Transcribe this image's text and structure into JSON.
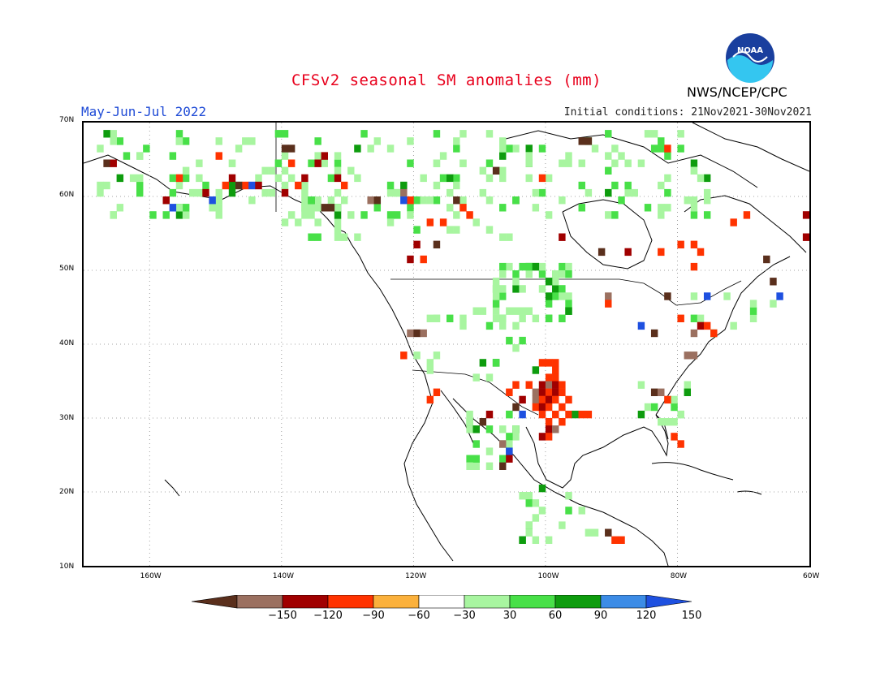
{
  "title": "CFSv2 seasonal SM anomalies (mm)",
  "period": "May-Jun-Jul 2022",
  "initial_conditions": "Initial conditions: 21Nov2021-30Nov2021",
  "agency": "NWS/NCEP/CPC",
  "logo_text": "NOAA",
  "map": {
    "lon_range": [
      -170,
      -60
    ],
    "lat_range": [
      10,
      70
    ],
    "lat_labels": [
      {
        "value": 70,
        "text": "70N"
      },
      {
        "value": 60,
        "text": "60N"
      },
      {
        "value": 50,
        "text": "50N"
      },
      {
        "value": 40,
        "text": "40N"
      },
      {
        "value": 30,
        "text": "30N"
      },
      {
        "value": 20,
        "text": "20N"
      },
      {
        "value": 10,
        "text": "10N"
      }
    ],
    "lon_labels": [
      {
        "value": -160,
        "text": "160W"
      },
      {
        "value": -140,
        "text": "140W"
      },
      {
        "value": -120,
        "text": "120W"
      },
      {
        "value": -100,
        "text": "100W"
      },
      {
        "value": -80,
        "text": "80W"
      },
      {
        "value": -60,
        "text": "60W"
      }
    ],
    "grid_lines": "dotted",
    "anomaly_cells": [
      {
        "lon": -100,
        "lat": 36,
        "v": -60
      },
      {
        "lon": -99,
        "lat": 36,
        "v": -60
      },
      {
        "lon": -101,
        "lat": 35,
        "v": -90
      },
      {
        "lon": -100,
        "lat": 35,
        "v": -120
      },
      {
        "lon": -99,
        "lat": 35,
        "v": -90
      },
      {
        "lon": -98,
        "lat": 35,
        "v": -60
      },
      {
        "lon": -102,
        "lat": 34,
        "v": -120
      },
      {
        "lon": -101,
        "lat": 34,
        "v": -90
      },
      {
        "lon": -100,
        "lat": 34,
        "v": -60
      },
      {
        "lon": -99,
        "lat": 34,
        "v": -90
      },
      {
        "lon": -98,
        "lat": 34,
        "v": -60
      },
      {
        "lon": -102,
        "lat": 33,
        "v": -120
      },
      {
        "lon": -101,
        "lat": 33,
        "v": -60
      },
      {
        "lon": -100,
        "lat": 33,
        "v": -90
      },
      {
        "lon": -99,
        "lat": 33,
        "v": -60
      },
      {
        "lon": -102,
        "lat": 32,
        "v": -60
      },
      {
        "lon": -101,
        "lat": 32,
        "v": -90
      },
      {
        "lon": -100,
        "lat": 32,
        "v": -60
      },
      {
        "lon": -98,
        "lat": 32,
        "v": -60
      },
      {
        "lon": -101,
        "lat": 31,
        "v": -60
      },
      {
        "lon": -99,
        "lat": 31,
        "v": -60
      },
      {
        "lon": -100,
        "lat": 30,
        "v": -60
      },
      {
        "lon": -98,
        "lat": 30,
        "v": -60
      },
      {
        "lon": -100,
        "lat": 29,
        "v": -90
      },
      {
        "lon": -99,
        "lat": 29,
        "v": -120
      },
      {
        "lon": -101,
        "lat": 28,
        "v": -90
      },
      {
        "lon": -100,
        "lat": 28,
        "v": -60
      },
      {
        "lon": -100,
        "lat": 38,
        "v": -60
      },
      {
        "lon": -99,
        "lat": 38,
        "v": -60
      },
      {
        "lon": -101,
        "lat": 38,
        "v": -60
      },
      {
        "lon": -99,
        "lat": 37,
        "v": -60
      },
      {
        "lon": -103,
        "lat": 35,
        "v": -60
      },
      {
        "lon": -104,
        "lat": 33,
        "v": -90
      },
      {
        "lon": -105,
        "lat": 32,
        "v": -150
      },
      {
        "lon": -104,
        "lat": 31,
        "v": 150
      },
      {
        "lon": -106,
        "lat": 34,
        "v": -60
      },
      {
        "lon": -105,
        "lat": 35,
        "v": -60
      },
      {
        "lon": -97,
        "lat": 33,
        "v": -60
      },
      {
        "lon": -97,
        "lat": 31,
        "v": -60
      },
      {
        "lon": -96,
        "lat": 31,
        "v": 90
      },
      {
        "lon": -95,
        "lat": 31,
        "v": -60
      },
      {
        "lon": -94,
        "lat": 31,
        "v": -60
      },
      {
        "lon": -84,
        "lat": 34,
        "v": -150
      },
      {
        "lon": -83,
        "lat": 34,
        "v": -120
      },
      {
        "lon": -82,
        "lat": 33,
        "v": -60
      },
      {
        "lon": -84,
        "lat": 32,
        "v": 60
      },
      {
        "lon": -81,
        "lat": 28,
        "v": -60
      },
      {
        "lon": -80,
        "lat": 27,
        "v": -60
      },
      {
        "lon": -79,
        "lat": 39,
        "v": -120
      },
      {
        "lon": -78,
        "lat": 39,
        "v": -120
      },
      {
        "lon": -77,
        "lat": 43,
        "v": -90
      },
      {
        "lon": -76,
        "lat": 43,
        "v": -60
      },
      {
        "lon": -78,
        "lat": 42,
        "v": -120
      },
      {
        "lon": -75,
        "lat": 42,
        "v": -60
      },
      {
        "lon": -80,
        "lat": 44,
        "v": -60
      },
      {
        "lon": -86,
        "lat": 43,
        "v": 150
      },
      {
        "lon": -84,
        "lat": 42,
        "v": -150
      },
      {
        "lon": -82,
        "lat": 47,
        "v": -150
      },
      {
        "lon": -91,
        "lat": 47,
        "v": -120
      },
      {
        "lon": -91,
        "lat": 46,
        "v": -60
      },
      {
        "lon": -121,
        "lat": 42,
        "v": -120
      },
      {
        "lon": -120,
        "lat": 42,
        "v": -150
      },
      {
        "lon": -119,
        "lat": 42,
        "v": -120
      },
      {
        "lon": -122,
        "lat": 39,
        "v": -60
      },
      {
        "lon": -118,
        "lat": 33,
        "v": -60
      },
      {
        "lon": -117,
        "lat": 34,
        "v": -60
      },
      {
        "lon": -110,
        "lat": 30,
        "v": -150
      },
      {
        "lon": -109,
        "lat": 31,
        "v": -90
      },
      {
        "lon": -107,
        "lat": 27,
        "v": -120
      },
      {
        "lon": -106,
        "lat": 26,
        "v": 150
      },
      {
        "lon": -106,
        "lat": 25,
        "v": -90
      },
      {
        "lon": -107,
        "lat": 24,
        "v": -150
      },
      {
        "lon": -91,
        "lat": 15,
        "v": -150
      },
      {
        "lon": -90,
        "lat": 14,
        "v": -60
      },
      {
        "lon": -89,
        "lat": 14,
        "v": -60
      },
      {
        "lon": -98,
        "lat": 55,
        "v": -90
      },
      {
        "lon": -92,
        "lat": 53,
        "v": -150
      },
      {
        "lon": -88,
        "lat": 53,
        "v": -90
      },
      {
        "lon": -83,
        "lat": 53,
        "v": -60
      },
      {
        "lon": -80,
        "lat": 54,
        "v": -60
      },
      {
        "lon": -78,
        "lat": 54,
        "v": -60
      },
      {
        "lon": -77,
        "lat": 53,
        "v": -60
      },
      {
        "lon": -78,
        "lat": 51,
        "v": -60
      },
      {
        "lon": -70,
        "lat": 58,
        "v": -60
      },
      {
        "lon": -61,
        "lat": 58,
        "v": -90
      },
      {
        "lon": -61,
        "lat": 55,
        "v": -90
      },
      {
        "lon": -120,
        "lat": 54,
        "v": -90
      },
      {
        "lon": -121,
        "lat": 52,
        "v": -90
      },
      {
        "lon": -119,
        "lat": 52,
        "v": -60
      },
      {
        "lon": -117,
        "lat": 54,
        "v": -150
      },
      {
        "lon": -114,
        "lat": 60,
        "v": -150
      },
      {
        "lon": -113,
        "lat": 59,
        "v": -60
      },
      {
        "lon": -112,
        "lat": 58,
        "v": -60
      },
      {
        "lon": -116,
        "lat": 57,
        "v": -60
      },
      {
        "lon": -118,
        "lat": 57,
        "v": -60
      },
      {
        "lon": -134,
        "lat": 59,
        "v": -150
      },
      {
        "lon": -133,
        "lat": 59,
        "v": -150
      },
      {
        "lon": -127,
        "lat": 60,
        "v": -120
      },
      {
        "lon": -126,
        "lat": 60,
        "v": -150
      },
      {
        "lon": -122,
        "lat": 61,
        "v": -120
      },
      {
        "lon": -121,
        "lat": 60,
        "v": -60
      },
      {
        "lon": -122,
        "lat": 60,
        "v": 150
      },
      {
        "lon": -140,
        "lat": 61,
        "v": -90
      },
      {
        "lon": -138,
        "lat": 62,
        "v": -60
      },
      {
        "lon": -137,
        "lat": 63,
        "v": -90
      },
      {
        "lon": -139,
        "lat": 65,
        "v": -60
      },
      {
        "lon": -132,
        "lat": 63,
        "v": -90
      },
      {
        "lon": -131,
        "lat": 62,
        "v": -60
      },
      {
        "lon": -140,
        "lat": 67,
        "v": -150
      },
      {
        "lon": -139,
        "lat": 67,
        "v": -150
      },
      {
        "lon": -134,
        "lat": 66,
        "v": -90
      },
      {
        "lon": -135,
        "lat": 65,
        "v": -90
      },
      {
        "lon": -158,
        "lat": 60,
        "v": -90
      },
      {
        "lon": -157,
        "lat": 59,
        "v": 150
      },
      {
        "lon": -152,
        "lat": 61,
        "v": -90
      },
      {
        "lon": -151,
        "lat": 60,
        "v": 150
      },
      {
        "lon": -149,
        "lat": 62,
        "v": -60
      },
      {
        "lon": -148,
        "lat": 63,
        "v": -90
      },
      {
        "lon": -146,
        "lat": 62,
        "v": -60
      },
      {
        "lon": -145,
        "lat": 62,
        "v": 150
      },
      {
        "lon": -147,
        "lat": 62,
        "v": -150
      },
      {
        "lon": -144,
        "lat": 62,
        "v": -90
      },
      {
        "lon": -167,
        "lat": 65,
        "v": -150
      },
      {
        "lon": -166,
        "lat": 65,
        "v": -90
      },
      {
        "lon": -156,
        "lat": 63,
        "v": -60
      },
      {
        "lon": -150,
        "lat": 66,
        "v": -60
      },
      {
        "lon": -108,
        "lat": 64,
        "v": -150
      },
      {
        "lon": -101,
        "lat": 63,
        "v": -60
      },
      {
        "lon": -95,
        "lat": 68,
        "v": -150
      },
      {
        "lon": -94,
        "lat": 68,
        "v": -150
      },
      {
        "lon": -82,
        "lat": 67,
        "v": -60
      },
      {
        "lon": -72,
        "lat": 57,
        "v": -60
      },
      {
        "lon": -67,
        "lat": 52,
        "v": -150
      },
      {
        "lon": -66,
        "lat": 49,
        "v": -150
      },
      {
        "lon": -65,
        "lat": 47,
        "v": 150
      },
      {
        "lon": -76,
        "lat": 47,
        "v": 150
      }
    ]
  },
  "colorbar": {
    "bins": [
      {
        "color": "#5a2f1c"
      },
      {
        "color": "#9b7060"
      },
      {
        "color": "#a00000"
      },
      {
        "color": "#ff3300"
      },
      {
        "color": "#fbb13c"
      },
      {
        "color": "#ffffff"
      },
      {
        "color": "#a8f5a0"
      },
      {
        "color": "#48e048"
      },
      {
        "color": "#0e9c0e"
      },
      {
        "color": "#3c8ce6"
      },
      {
        "color": "#1e50e0"
      }
    ],
    "labels": [
      "-150",
      "-120",
      "-90",
      "-60",
      "-30",
      "30",
      "60",
      "90",
      "120",
      "150"
    ]
  },
  "wet_color_scale": {
    "30": "#a8f5a0",
    "60": "#48e048",
    "90": "#0e9c0e",
    "120": "#3c8ce6",
    "150": "#1e50e0"
  },
  "dry_color_scale": {
    "-30": "#fbb13c",
    "-60": "#fbb13c",
    "-90": "#ff3300",
    "-120": "#a00000",
    "-150": "#9b7060"
  }
}
